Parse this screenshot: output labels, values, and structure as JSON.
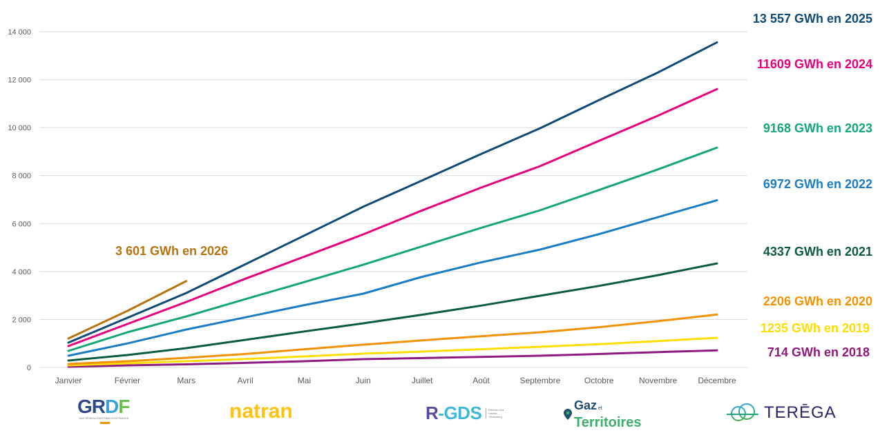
{
  "chart_data": {
    "type": "line",
    "title": "",
    "xlabel": "",
    "ylabel": "",
    "ylim": [
      0,
      14000
    ],
    "yticks": [
      0,
      2000,
      4000,
      6000,
      8000,
      10000,
      12000,
      14000
    ],
    "ytick_labels": [
      "0",
      "2 000",
      "4 000",
      "6 000",
      "8 000",
      "10 000",
      "12 000",
      "14 000"
    ],
    "grid": true,
    "legend": "none (end labels on right)",
    "categories": [
      "Janvier",
      "Février",
      "Mars",
      "Avril",
      "Mai",
      "Juin",
      "Juillet",
      "Août",
      "Septembre",
      "Octobre",
      "Novembre",
      "Décembre"
    ],
    "series": [
      {
        "name": "2018",
        "color": "#8e1a7f",
        "label": "714 GWh en 2018",
        "values": [
          30,
          86,
          130,
          190,
          260,
          345,
          390,
          440,
          489,
          560,
          640,
          714
        ]
      },
      {
        "name": "2019",
        "color": "#ffdd00",
        "label": "1235 GWh en 2019",
        "values": [
          86,
          172,
          259,
          350,
          460,
          575,
          660,
          760,
          862,
          970,
          1100,
          1235
        ]
      },
      {
        "name": "2020",
        "color": "#f39200",
        "label": "2206 GWh en 2020",
        "values": [
          144,
          259,
          402,
          560,
          760,
          949,
          1130,
          1300,
          1466,
          1680,
          1930,
          2206
        ]
      },
      {
        "name": "2021",
        "color": "#0a5c3c",
        "label": "4337 GWh en 2021",
        "values": [
          287,
          517,
          805,
          1150,
          1500,
          1840,
          2200,
          2580,
          2990,
          3400,
          3850,
          4337
        ]
      },
      {
        "name": "2022",
        "color": "#1a7cc4",
        "label": "6972 GWh en 2022",
        "values": [
          489,
          1000,
          1581,
          2090,
          2600,
          3076,
          3780,
          4380,
          4916,
          5560,
          6270,
          6972
        ]
      },
      {
        "name": "2023",
        "color": "#14a57b",
        "label": "9168 GWh en 2023",
        "values": [
          690,
          1466,
          2127,
          2850,
          3560,
          4283,
          5050,
          5820,
          6554,
          7400,
          8260,
          9168
        ]
      },
      {
        "name": "2024",
        "color": "#e6007e",
        "label": "11609 GWh en 2024",
        "values": [
          891,
          1811,
          2731,
          3700,
          4620,
          5548,
          6550,
          7500,
          8394,
          9450,
          10500,
          11609
        ]
      },
      {
        "name": "2025",
        "color": "#0d4a75",
        "label": "13 557 GWh en 2025",
        "values": [
          1035,
          2070,
          3105,
          4300,
          5500,
          6700,
          7800,
          8900,
          9976,
          11150,
          12300,
          13557
        ]
      },
      {
        "name": "2026",
        "color": "#b8730f",
        "label": "3 601 GWh en 2026",
        "values": [
          1207,
          2358,
          3601
        ]
      }
    ]
  },
  "logos": {
    "grdf": {
      "name": "GRDF",
      "subtitle": "GAZ RÉSEAU DISTRIBUTION FRANCE"
    },
    "natran": {
      "name": "natran"
    },
    "rgds": {
      "name": "R-GDS",
      "subtitle": "Réseau Gaz réseau Strasbourg"
    },
    "gaz_territoires": {
      "top": "Gaz",
      "et": "et",
      "bottom": "Territoires"
    },
    "terega": {
      "name": "TERĒGA"
    }
  }
}
